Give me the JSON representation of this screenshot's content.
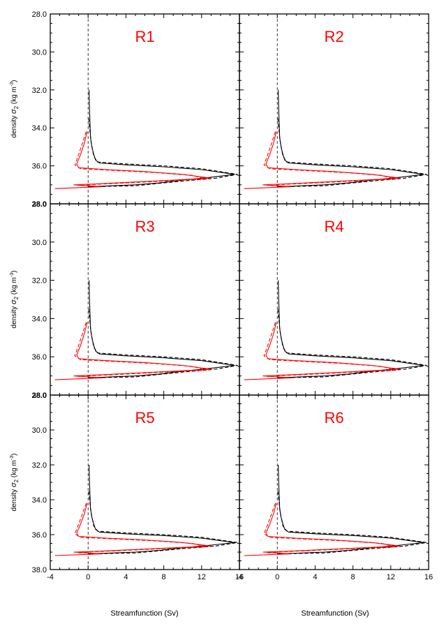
{
  "panels": [
    {
      "label": "R1"
    },
    {
      "label": "R2"
    },
    {
      "label": "R3"
    },
    {
      "label": "R4"
    },
    {
      "label": "R5"
    },
    {
      "label": "R6"
    }
  ],
  "ylabel_main": "density",
  "ylabel_sym": "σ",
  "ylabel_sub": "2",
  "ylabel_units_open": " (kg m",
  "ylabel_units_exp": "-3",
  "ylabel_units_close": ")",
  "xlabel": "Streamfunction (Sv)",
  "colors": {
    "label": "#ff0000",
    "black_series": "#000000",
    "red_series": "#ff0000"
  },
  "chart_data": {
    "type": "line",
    "layout": "3x2 panel grid",
    "xlim": [
      -4,
      16
    ],
    "xticks": [
      "-4",
      "0",
      "4",
      "8",
      "12",
      "16"
    ],
    "ylim": [
      28.0,
      38.0
    ],
    "yticks": [
      "28.0",
      "30.0",
      "32.0",
      "34.0",
      "36.0",
      "38.0"
    ],
    "y_inverted": true,
    "zero_line": "dashed",
    "series": [
      {
        "color": "#000000",
        "dash": false,
        "points": [
          [
            0.1,
            32.0
          ],
          [
            0.15,
            33.0
          ],
          [
            0.25,
            34.5
          ],
          [
            0.4,
            35.0
          ],
          [
            0.6,
            35.4
          ],
          [
            0.8,
            35.7
          ],
          [
            1.2,
            35.85
          ],
          [
            4,
            35.95
          ],
          [
            8,
            36.05
          ],
          [
            12,
            36.2
          ],
          [
            15.5,
            36.45
          ],
          [
            13,
            36.6
          ],
          [
            10,
            36.75
          ],
          [
            7.5,
            36.9
          ],
          [
            5,
            37.0
          ],
          [
            0,
            37.1
          ]
        ]
      },
      {
        "color": "#000000",
        "dash": true,
        "points": [
          [
            0.05,
            33.5
          ],
          [
            0.3,
            34.7
          ],
          [
            0.6,
            35.5
          ],
          [
            1.0,
            35.8
          ],
          [
            4,
            35.9
          ],
          [
            8,
            36.0
          ],
          [
            12,
            36.15
          ],
          [
            15.8,
            36.45
          ],
          [
            13.5,
            36.65
          ],
          [
            10,
            36.8
          ],
          [
            7,
            36.95
          ],
          [
            5,
            37.05
          ],
          [
            0,
            37.1
          ]
        ]
      },
      {
        "color": "#ff0000",
        "dash": false,
        "points": [
          [
            -0.1,
            34.2
          ],
          [
            -0.4,
            34.8
          ],
          [
            -0.8,
            35.4
          ],
          [
            -1.2,
            35.9
          ],
          [
            -1.0,
            36.1
          ],
          [
            2,
            36.2
          ],
          [
            6,
            36.3
          ],
          [
            10,
            36.45
          ],
          [
            13,
            36.65
          ],
          [
            9,
            36.75
          ],
          [
            5,
            36.85
          ],
          [
            1,
            36.95
          ],
          [
            -1.5,
            37.0
          ],
          [
            1.5,
            37.1
          ],
          [
            -3.5,
            37.2
          ]
        ]
      },
      {
        "color": "#ff0000",
        "dash": true,
        "points": [
          [
            -0.2,
            34.2
          ],
          [
            -0.6,
            34.8
          ],
          [
            -1.0,
            35.4
          ],
          [
            -1.4,
            35.95
          ],
          [
            -0.8,
            36.15
          ],
          [
            3,
            36.25
          ],
          [
            7,
            36.35
          ],
          [
            11,
            36.5
          ],
          [
            12.5,
            36.7
          ],
          [
            8,
            36.8
          ],
          [
            4,
            36.9
          ],
          [
            0.5,
            36.98
          ],
          [
            -1.0,
            37.05
          ]
        ]
      }
    ]
  }
}
